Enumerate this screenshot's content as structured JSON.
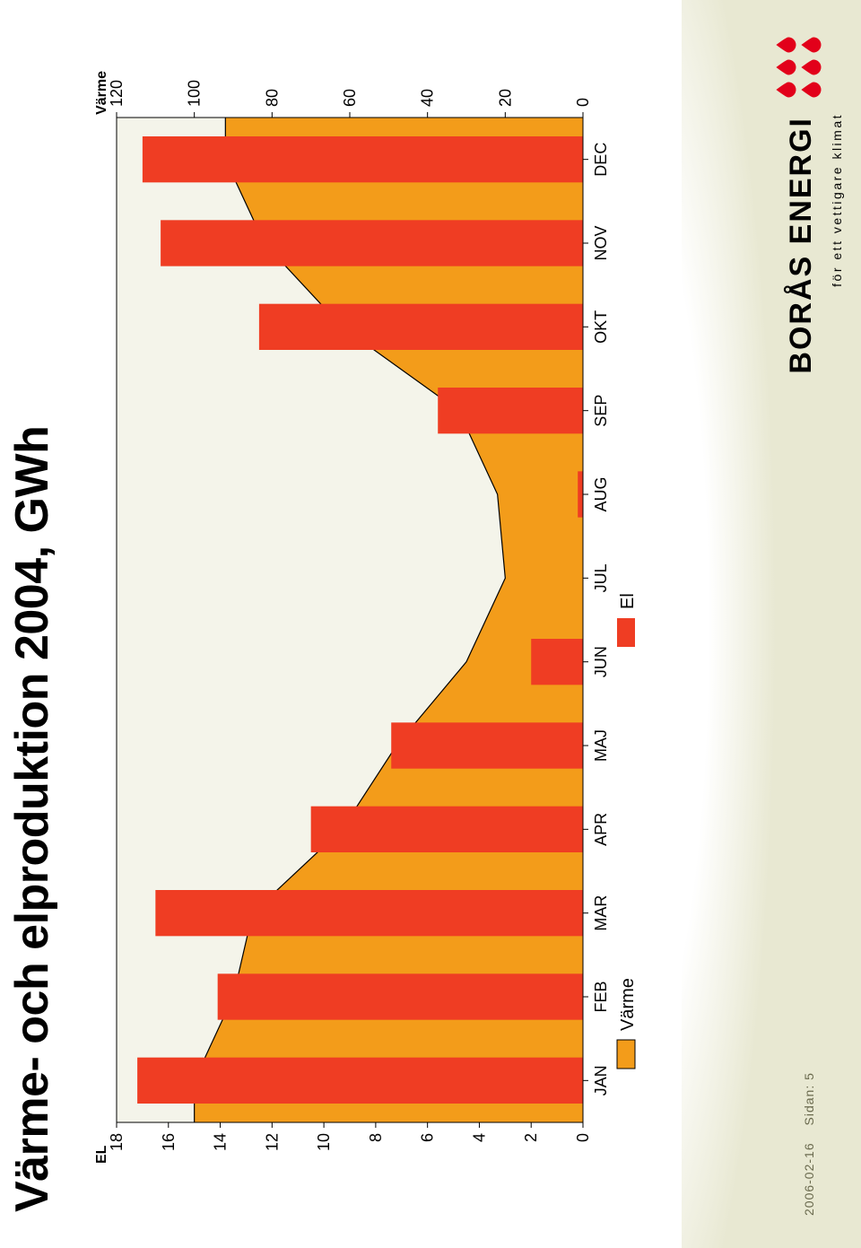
{
  "title": "Värme- och elproduktion 2004, GWh",
  "chart": {
    "type": "bar+area",
    "background_color": "#f4f4ea",
    "plot_border_color": "#000000",
    "tick_font_size": 18,
    "label_font_size": 18,
    "axis_title_font_size": 16,
    "axis_title_font_weight": "bold",
    "left_axis_title": "EL",
    "right_axis_title": "Värme",
    "categories": [
      "JAN",
      "FEB",
      "MAR",
      "APR",
      "MAJ",
      "JUN",
      "JUL",
      "AUG",
      "SEP",
      "OKT",
      "NOV",
      "DEC"
    ],
    "left_axis": {
      "min": 0,
      "max": 18,
      "step": 2
    },
    "right_axis": {
      "min": 0,
      "max": 120,
      "step": 20
    },
    "series_area": {
      "name": "Värme",
      "axis": "right",
      "fill_color": "#f39c1a",
      "line_color": "#000000",
      "line_width": 1.2,
      "values": [
        100,
        90,
        85,
        62,
        48,
        30,
        20,
        22,
        32,
        62,
        82,
        92
      ]
    },
    "series_bar": {
      "name": "El",
      "axis": "left",
      "fill_color": "#ef3d23",
      "bar_width_ratio": 0.55,
      "values": [
        17.2,
        14.1,
        16.5,
        10.5,
        7.4,
        2.0,
        0.0,
        0.2,
        5.6,
        12.5,
        16.3,
        17.0
      ]
    },
    "legend": {
      "items": [
        {
          "label": "Värme",
          "swatch_fill": "#f39c1a",
          "swatch_stroke": "#000000"
        },
        {
          "label": "El",
          "swatch_fill": "#ef3d23",
          "swatch_stroke": "none"
        }
      ],
      "font_size": 20
    }
  },
  "footer": {
    "date": "2006-02-16",
    "page_label": "Sidan: 5",
    "logo_text": "BORÅS ENERGI",
    "logo_tag": "för ett vettigare klimat",
    "logo_droplet_color": "#e2001a"
  }
}
